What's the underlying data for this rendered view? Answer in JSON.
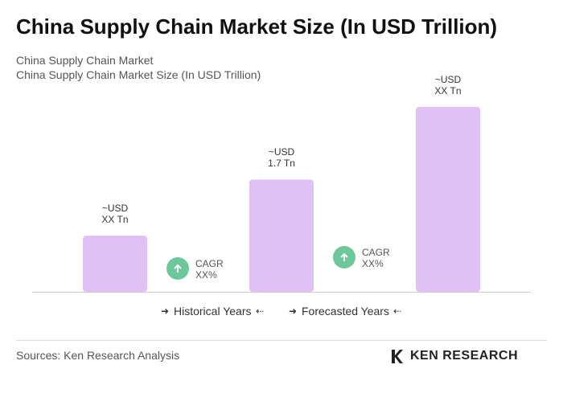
{
  "chart_data": {
    "type": "bar",
    "title": "China Supply Chain Market Size (In USD Trillion)",
    "subtitle": "China Supply Chain Market",
    "subtitle2": "China Supply Chain Market Size (In USD Trillion)",
    "categories": [
      null,
      null,
      null
    ],
    "values": [
      0.85,
      1.7,
      2.8
    ],
    "value_labels": [
      "~USD\nXX Tn",
      "~USD\n1.7 Tn",
      "~USD\nXX Tn"
    ],
    "color": "#dfc1f7",
    "annotations": [
      "CAGR\nXX%",
      "CAGR\nXX%"
    ],
    "annotation_color": "#6cc79a",
    "legend": [
      "Historical Years",
      "Forecasted Years"
    ],
    "source": "Sources: Ken Research Analysis",
    "logo": "KEN RESEARCH"
  }
}
